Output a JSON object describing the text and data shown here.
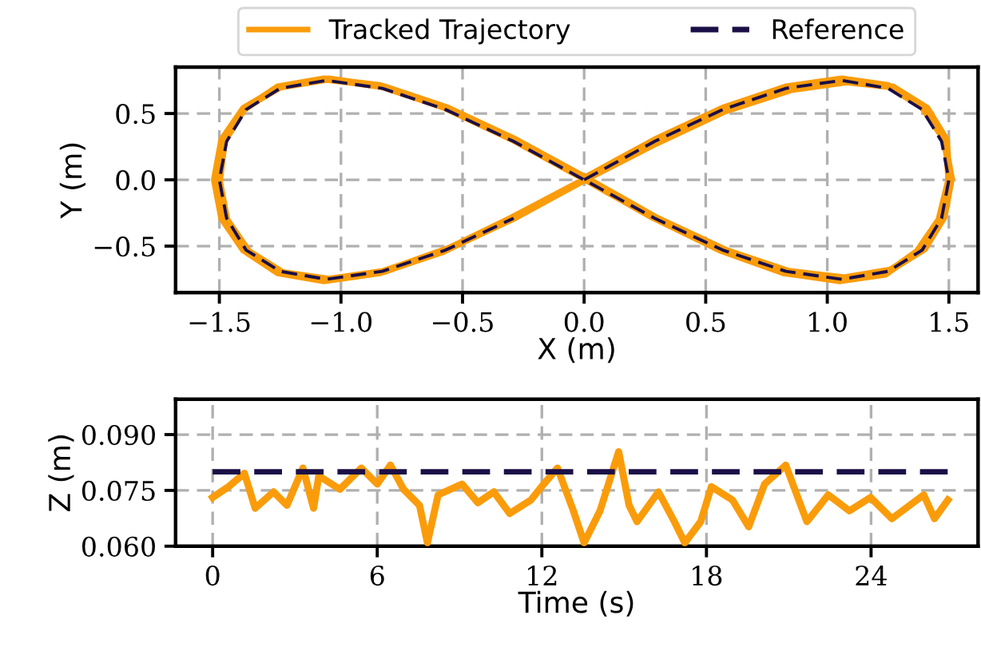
{
  "chart_data": [
    {
      "type": "line",
      "xlabel": "X (m)",
      "ylabel": "Y (m)",
      "xlim": [
        -1.68,
        1.62
      ],
      "ylim": [
        -0.85,
        0.85
      ],
      "xticks": [
        {
          "value": -1.5,
          "label": "−1.5"
        },
        {
          "value": -1.0,
          "label": "−1.0"
        },
        {
          "value": -0.5,
          "label": "−0.5"
        },
        {
          "value": 0.0,
          "label": "0.0"
        },
        {
          "value": 0.5,
          "label": "0.5"
        },
        {
          "value": 1.0,
          "label": "1.0"
        },
        {
          "value": 1.5,
          "label": "1.5"
        }
      ],
      "yticks": [
        {
          "value": -0.5,
          "label": "−0.5"
        },
        {
          "value": 0.0,
          "label": "0.0"
        },
        {
          "value": 0.5,
          "label": "0.5"
        }
      ],
      "grid": true,
      "legend": "top",
      "series": [
        {
          "name": "Tracked Trajectory",
          "color": "#fa9c0a",
          "line_style": "solid",
          "x": [
            0,
            0.29,
            0.57,
            0.83,
            1.06,
            1.25,
            1.39,
            1.48,
            1.51,
            1.48,
            1.4,
            1.26,
            1.07,
            0.84,
            0.58,
            0.3,
            0.01,
            -0.28,
            -0.56,
            -0.82,
            -1.05,
            -1.25,
            -1.4,
            -1.49,
            -1.52,
            -1.49,
            -1.4,
            -1.26,
            -1.07,
            -0.84,
            -0.58,
            -0.3,
            0.0,
            0.3,
            0.58,
            0.85,
            1.08,
            1.27,
            1.41,
            1.49,
            1.5,
            1.46,
            1.37,
            1.24,
            1.05,
            0.82,
            0.56,
            0.28,
            -0.01,
            -0.3,
            -0.58,
            -0.84,
            -1.07,
            -1.26,
            -1.4,
            -1.48,
            -1.5,
            -1.47,
            -1.38,
            -1.24,
            -1.05,
            -0.82,
            -0.56,
            -0.28,
            0.0
          ],
          "values": [
            0.01,
            0.3,
            0.54,
            0.7,
            0.76,
            0.71,
            0.55,
            0.31,
            0.01,
            -0.28,
            -0.52,
            -0.68,
            -0.74,
            -0.69,
            -0.53,
            -0.29,
            0.01,
            0.3,
            0.54,
            0.7,
            0.76,
            0.7,
            0.54,
            0.3,
            0.0,
            -0.29,
            -0.53,
            -0.7,
            -0.76,
            -0.7,
            -0.54,
            -0.29,
            0.0,
            0.28,
            0.52,
            0.68,
            0.74,
            0.7,
            0.54,
            0.3,
            0.0,
            -0.3,
            -0.54,
            -0.71,
            -0.76,
            -0.7,
            -0.53,
            -0.28,
            0.02,
            0.31,
            0.55,
            0.71,
            0.76,
            0.7,
            0.53,
            0.29,
            -0.01,
            -0.3,
            -0.54,
            -0.7,
            -0.75,
            -0.69,
            -0.52,
            -0.28,
            0.0
          ]
        },
        {
          "name": "Reference",
          "color": "#1b0f47",
          "line_style": "dashed",
          "x": [
            0,
            0.29,
            0.57,
            0.83,
            1.06,
            1.25,
            1.39,
            1.47,
            1.5,
            1.47,
            1.39,
            1.25,
            1.06,
            0.83,
            0.57,
            0.29,
            0,
            -0.29,
            -0.57,
            -0.83,
            -1.06,
            -1.25,
            -1.39,
            -1.47,
            -1.5,
            -1.47,
            -1.39,
            -1.25,
            -1.06,
            -0.83,
            -0.57,
            -0.29
          ],
          "values": [
            0,
            0.29,
            0.53,
            0.69,
            0.75,
            0.69,
            0.53,
            0.29,
            0,
            -0.29,
            -0.53,
            -0.69,
            -0.75,
            -0.69,
            -0.53,
            -0.29,
            0,
            0.29,
            0.53,
            0.69,
            0.75,
            0.69,
            0.53,
            0.29,
            0,
            -0.29,
            -0.53,
            -0.69,
            -0.75,
            -0.69,
            -0.53,
            -0.29
          ]
        }
      ]
    },
    {
      "type": "line",
      "xlabel": "Time (s)",
      "ylabel": "Z (m)",
      "xlim": [
        -1.35,
        27.9
      ],
      "ylim": [
        0.06,
        0.0995
      ],
      "xticks": [
        0,
        6,
        12,
        18,
        24
      ],
      "yticks": [
        {
          "value": 0.06,
          "label": "0.060"
        },
        {
          "value": 0.075,
          "label": "0.075"
        },
        {
          "value": 0.09,
          "label": "0.090"
        }
      ],
      "grid": true,
      "series": [
        {
          "color": "#1b0f47",
          "line_style": "dashed",
          "x": [
            0,
            26.8
          ],
          "values": [
            0.08,
            0.08
          ]
        },
        {
          "color": "#fa9c0a",
          "line_style": "solid",
          "x": [
            0,
            0.58,
            1.16,
            1.55,
            2.22,
            2.71,
            3.29,
            3.68,
            3.87,
            4.64,
            5.42,
            6.0,
            6.48,
            6.96,
            7.54,
            7.83,
            8.22,
            9.09,
            9.67,
            10.25,
            10.83,
            11.6,
            11.99,
            12.57,
            13.15,
            13.54,
            14.12,
            14.8,
            15.18,
            15.47,
            16.25,
            16.83,
            17.21,
            17.79,
            18.18,
            18.95,
            19.54,
            20.12,
            20.89,
            21.66,
            22.44,
            23.21,
            23.98,
            24.76,
            25.92,
            26.31,
            26.8
          ],
          "values": [
            0.0731,
            0.076,
            0.0796,
            0.0702,
            0.0746,
            0.071,
            0.081,
            0.0702,
            0.0789,
            0.0753,
            0.081,
            0.0767,
            0.0818,
            0.0753,
            0.071,
            0.0609,
            0.0738,
            0.0767,
            0.0717,
            0.0746,
            0.0688,
            0.0724,
            0.076,
            0.081,
            0.0695,
            0.0609,
            0.0695,
            0.0854,
            0.071,
            0.0666,
            0.0746,
            0.0666,
            0.0609,
            0.0666,
            0.076,
            0.0724,
            0.0652,
            0.0767,
            0.0818,
            0.0666,
            0.0738,
            0.0695,
            0.0731,
            0.0674,
            0.0738,
            0.0674,
            0.0724
          ]
        }
      ]
    }
  ]
}
